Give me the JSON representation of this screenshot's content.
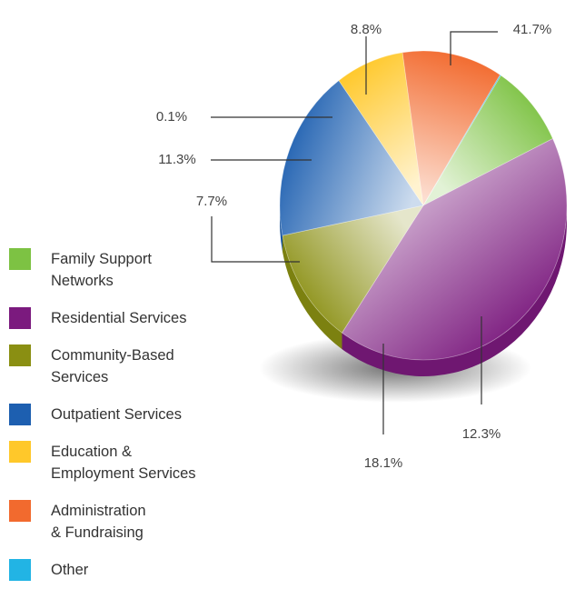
{
  "chart_data": {
    "type": "pie",
    "title": "",
    "series": [
      {
        "name": "Family Support Networks",
        "value": 8.8,
        "label": "8.8%",
        "color": "#7dc243"
      },
      {
        "name": "Residential Services",
        "value": 41.7,
        "label": "41.7%",
        "color": "#7b1a7e"
      },
      {
        "name": "Community-Based Services",
        "value": 12.3,
        "label": "12.3%",
        "color": "#8a8f12"
      },
      {
        "name": "Outpatient Services",
        "value": 18.1,
        "label": "18.1%",
        "color": "#1d5fb0"
      },
      {
        "name": "Education & Employment Services",
        "value": 7.7,
        "label": "7.7%",
        "color": "#ffc82a"
      },
      {
        "name": "Administration & Fundraising",
        "value": 11.3,
        "label": "11.3%",
        "color": "#f26a2e"
      },
      {
        "name": "Other",
        "value": 0.1,
        "label": "0.1%",
        "color": "#22b4e4"
      }
    ],
    "legend": {
      "placement": "left",
      "items": [
        {
          "label": "Family Support Networks",
          "color": "#7dc243"
        },
        {
          "label": "Residential Services",
          "color": "#7b1a7e"
        },
        {
          "label": "Community-Based Services",
          "color": "#8a8f12"
        },
        {
          "label": "Outpatient Services",
          "color": "#1d5fb0"
        },
        {
          "label": "Education & Employment Services",
          "color": "#ffc82a"
        },
        {
          "label": "Administration & Fundraising",
          "color": "#f26a2e"
        },
        {
          "label": "Other",
          "color": "#22b4e4"
        }
      ]
    }
  }
}
